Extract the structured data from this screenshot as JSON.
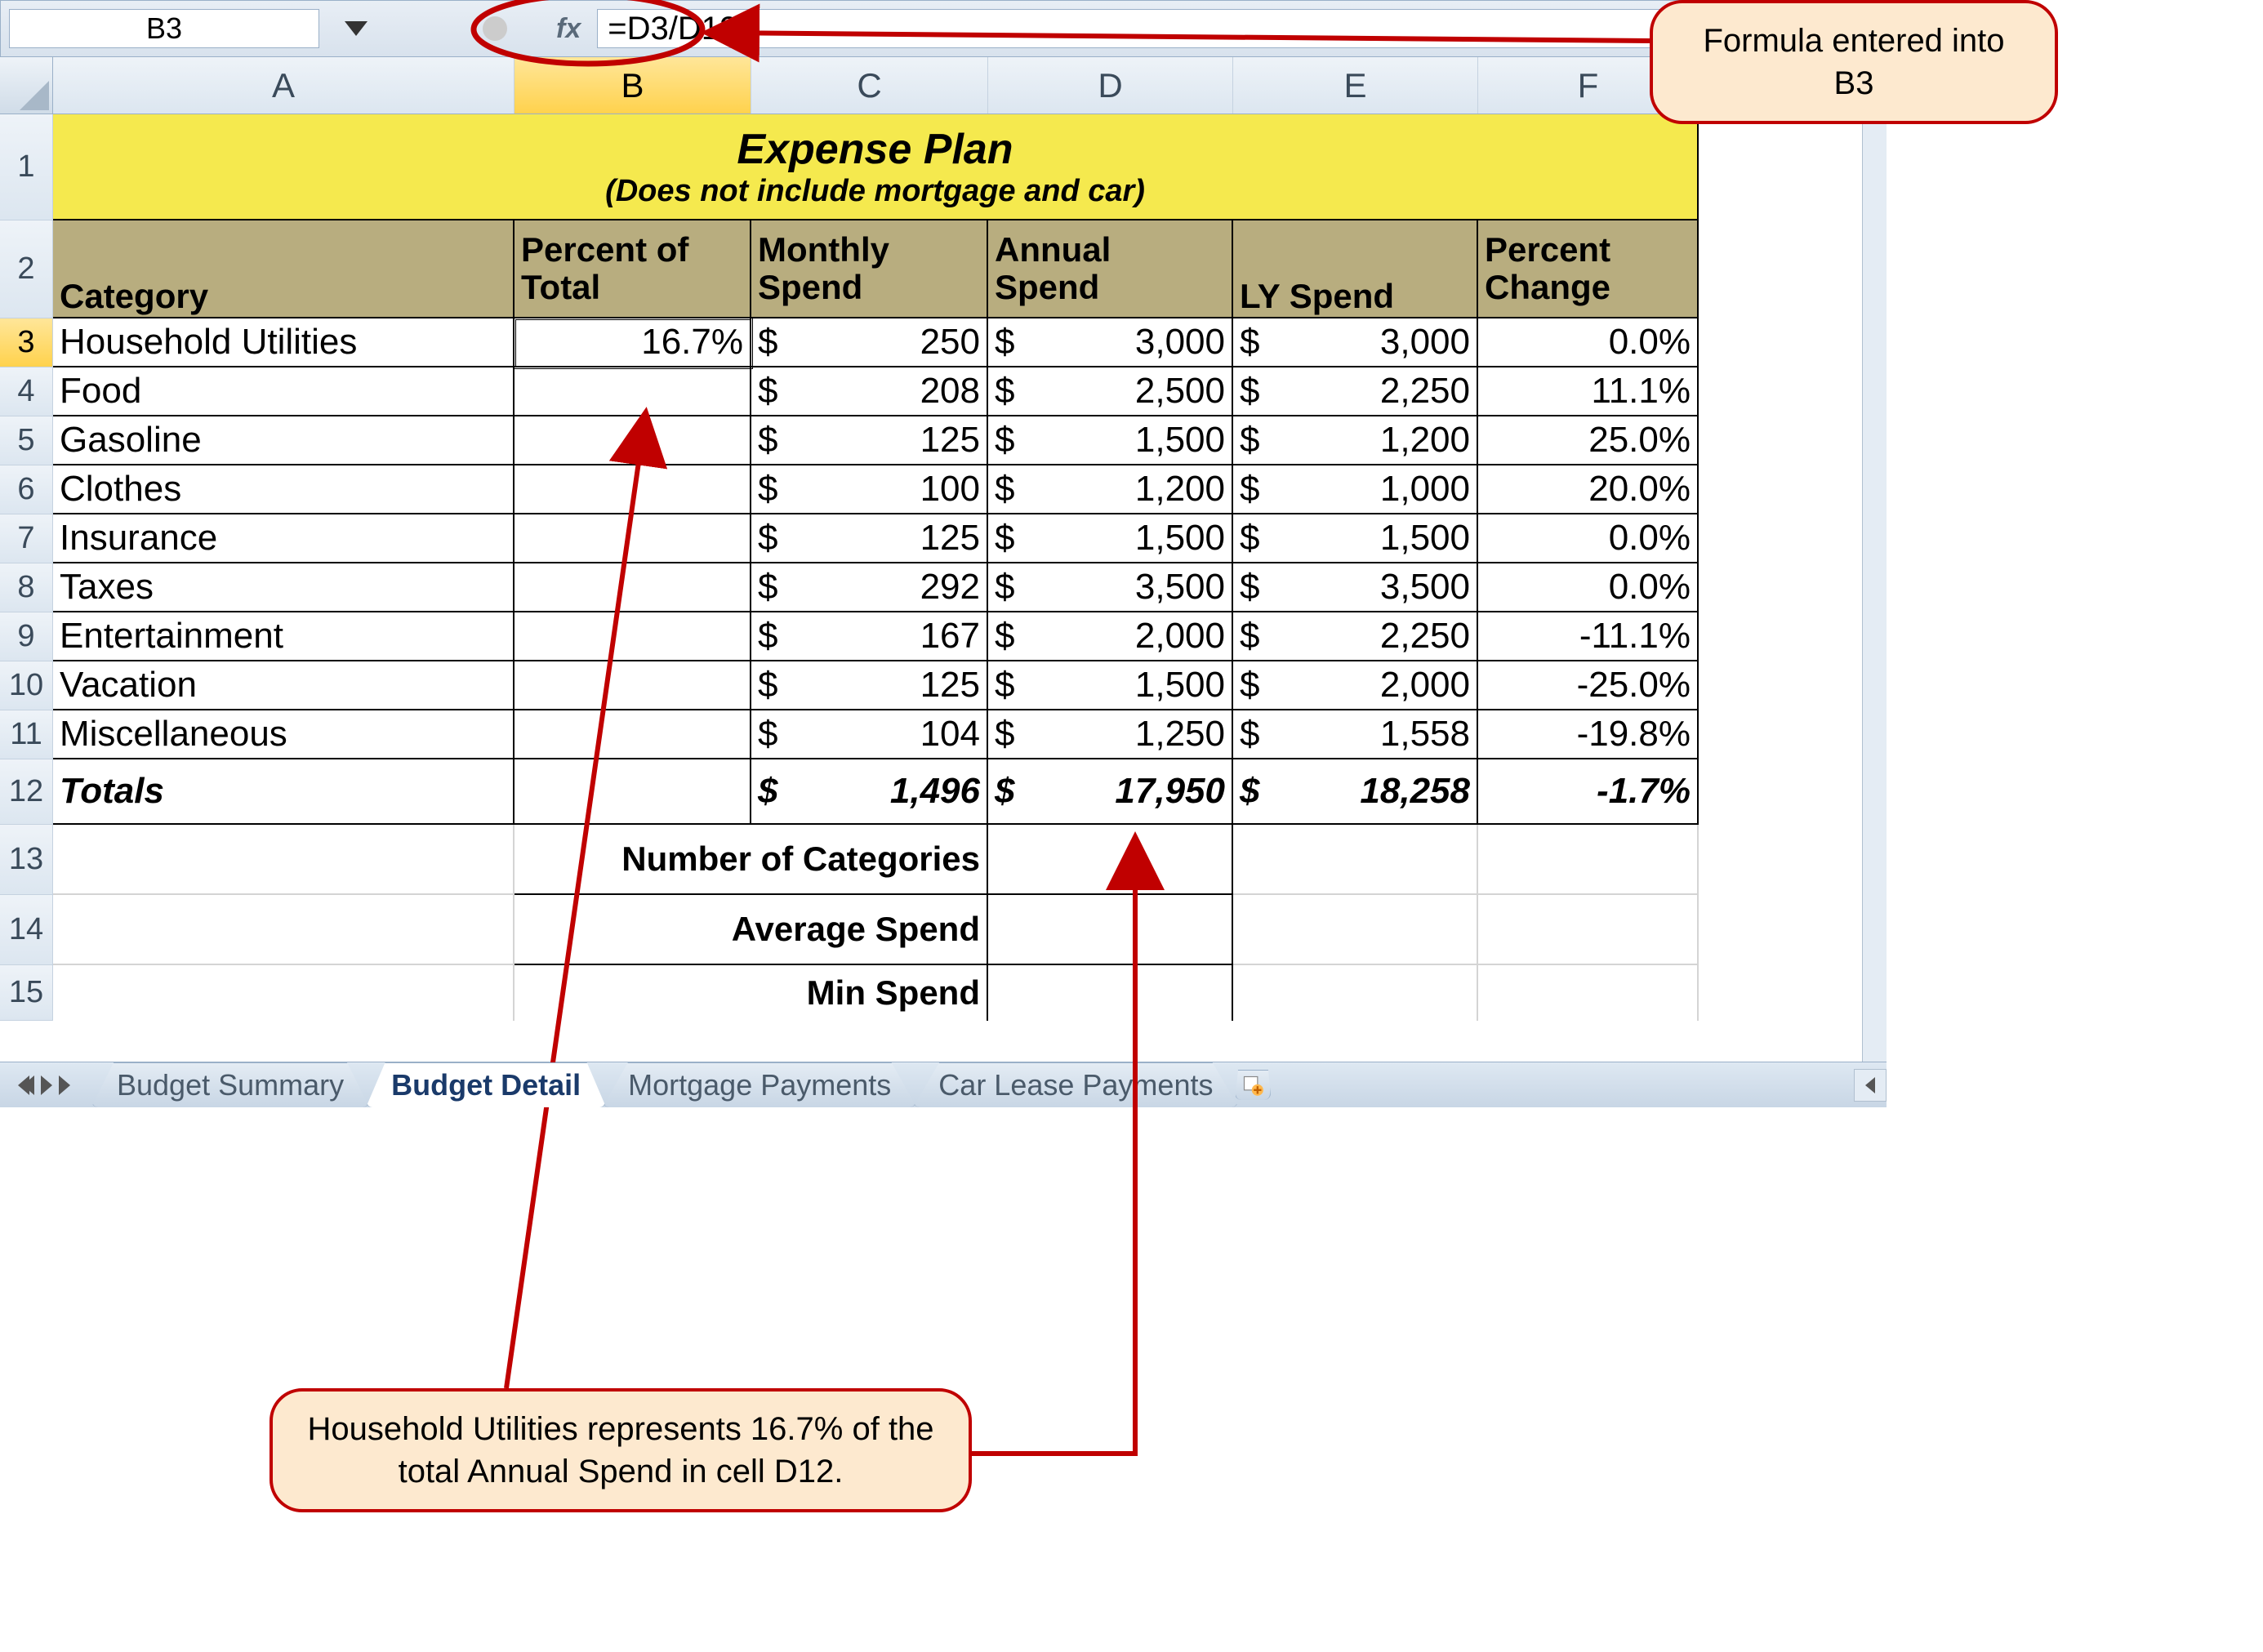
{
  "formula_bar": {
    "cell_ref": "B3",
    "fx_label": "fx",
    "formula": "=D3/D12"
  },
  "columns": [
    "A",
    "B",
    "C",
    "D",
    "E",
    "F"
  ],
  "rows": [
    "1",
    "2",
    "3",
    "4",
    "5",
    "6",
    "7",
    "8",
    "9",
    "10",
    "11",
    "12",
    "13",
    "14",
    "15"
  ],
  "selected_col": "B",
  "selected_row": "3",
  "title": {
    "main": "Expense Plan",
    "sub": "(Does not include mortgage and car)",
    "bg_color": "#f5e94e"
  },
  "headers": {
    "A": "Category",
    "B": "Percent of Total",
    "C": "Monthly Spend",
    "D": "Annual Spend",
    "E": "LY Spend",
    "F": "Percent Change",
    "bg_color": "#b8ad7f"
  },
  "data": [
    {
      "cat": "Household Utilities",
      "pct": "16.7%",
      "monthly": "250",
      "annual": "3,000",
      "ly": "3,000",
      "chg": "0.0%"
    },
    {
      "cat": "Food",
      "pct": "",
      "monthly": "208",
      "annual": "2,500",
      "ly": "2,250",
      "chg": "11.1%"
    },
    {
      "cat": "Gasoline",
      "pct": "",
      "monthly": "125",
      "annual": "1,500",
      "ly": "1,200",
      "chg": "25.0%"
    },
    {
      "cat": "Clothes",
      "pct": "",
      "monthly": "100",
      "annual": "1,200",
      "ly": "1,000",
      "chg": "20.0%"
    },
    {
      "cat": "Insurance",
      "pct": "",
      "monthly": "125",
      "annual": "1,500",
      "ly": "1,500",
      "chg": "0.0%"
    },
    {
      "cat": "Taxes",
      "pct": "",
      "monthly": "292",
      "annual": "3,500",
      "ly": "3,500",
      "chg": "0.0%"
    },
    {
      "cat": "Entertainment",
      "pct": "",
      "monthly": "167",
      "annual": "2,000",
      "ly": "2,250",
      "chg": "-11.1%"
    },
    {
      "cat": "Vacation",
      "pct": "",
      "monthly": "125",
      "annual": "1,500",
      "ly": "2,000",
      "chg": "-25.0%"
    },
    {
      "cat": "Miscellaneous",
      "pct": "",
      "monthly": "104",
      "annual": "1,250",
      "ly": "1,558",
      "chg": "-19.8%"
    }
  ],
  "totals": {
    "label": "Totals",
    "monthly": "1,496",
    "annual": "17,950",
    "ly": "18,258",
    "chg": "-1.7%"
  },
  "summary_labels": {
    "r13": "Number of Categories",
    "r14": "Average Spend",
    "r15": "Min Spend"
  },
  "tabs": [
    "Budget Summary",
    "Budget Detail",
    "Mortgage Payments",
    "Car Lease Payments"
  ],
  "active_tab": "Budget Detail",
  "callouts": {
    "c1": "Formula entered into B3",
    "c2": "Household Utilities represents 16.7% of the total Annual Spend in cell D12."
  },
  "currency_symbol": "$",
  "colors": {
    "annotation": "#c00000",
    "callout_bg": "#fde9cf",
    "grid_border": "#000000",
    "header_bg": "#b8ad7f",
    "title_bg": "#f5e94e",
    "chrome_bg": "#dce6f0"
  }
}
